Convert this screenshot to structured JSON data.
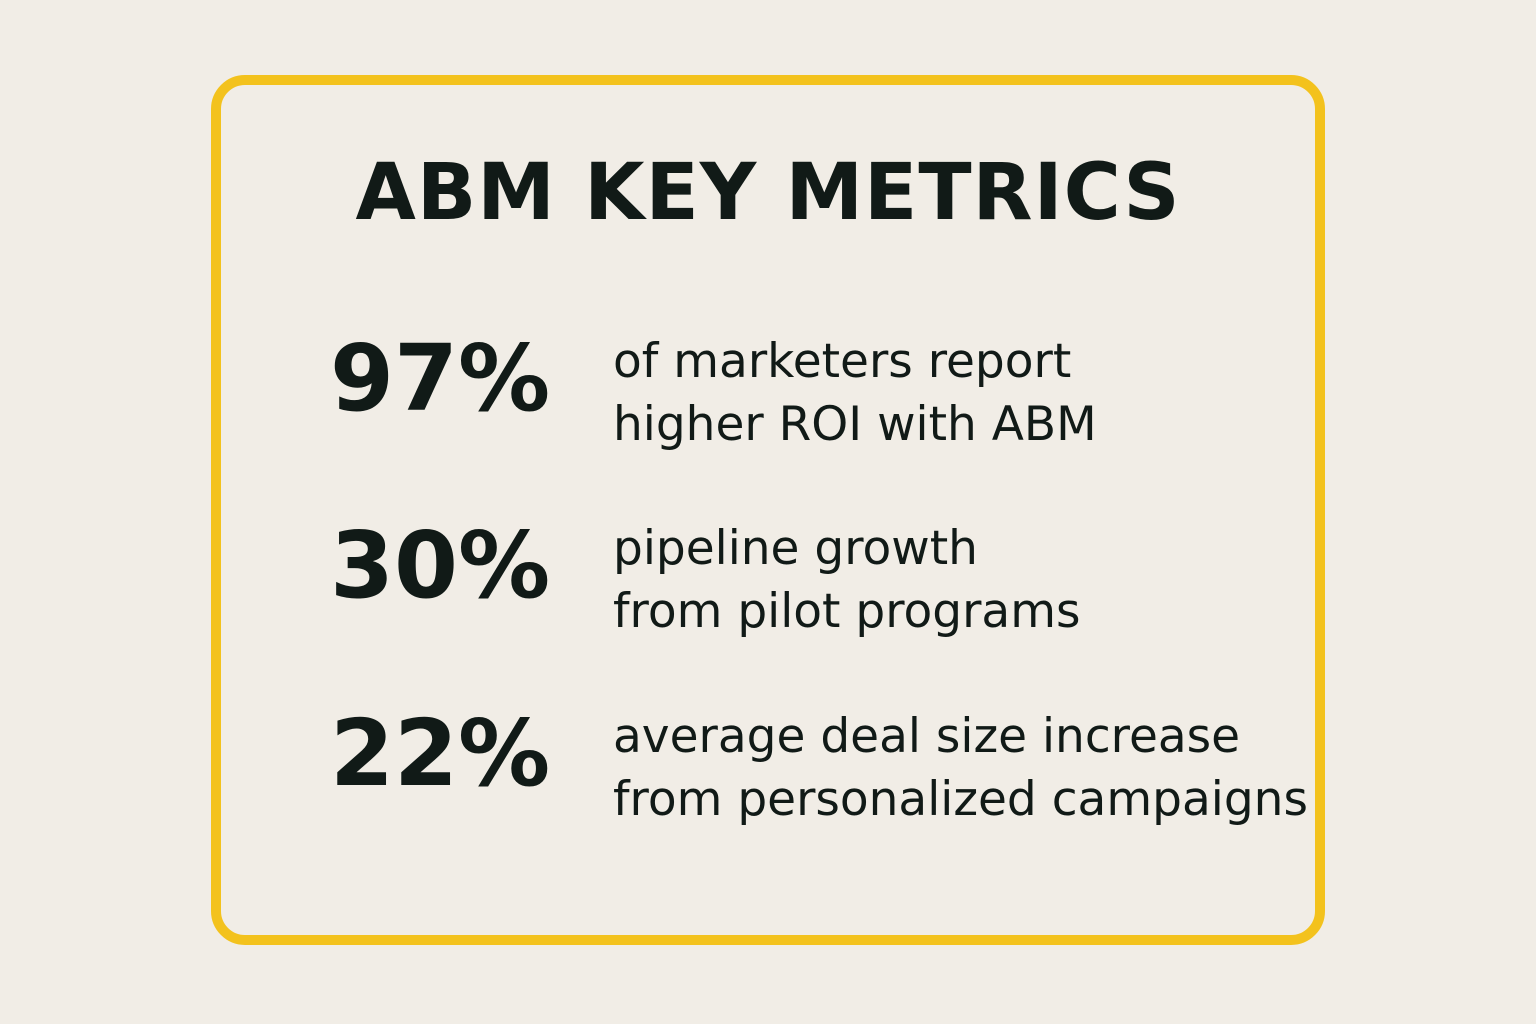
{
  "title": "ABM KEY METRICS",
  "metrics": [
    {
      "value": "97%",
      "lines": [
        "of marketers report",
        "higher ROI with ABM"
      ]
    },
    {
      "value": "30%",
      "lines": [
        "pipeline growth",
        "from pilot programs"
      ]
    },
    {
      "value": "22%",
      "lines": [
        "average deal size increase",
        "from personalized campaigns"
      ]
    }
  ]
}
